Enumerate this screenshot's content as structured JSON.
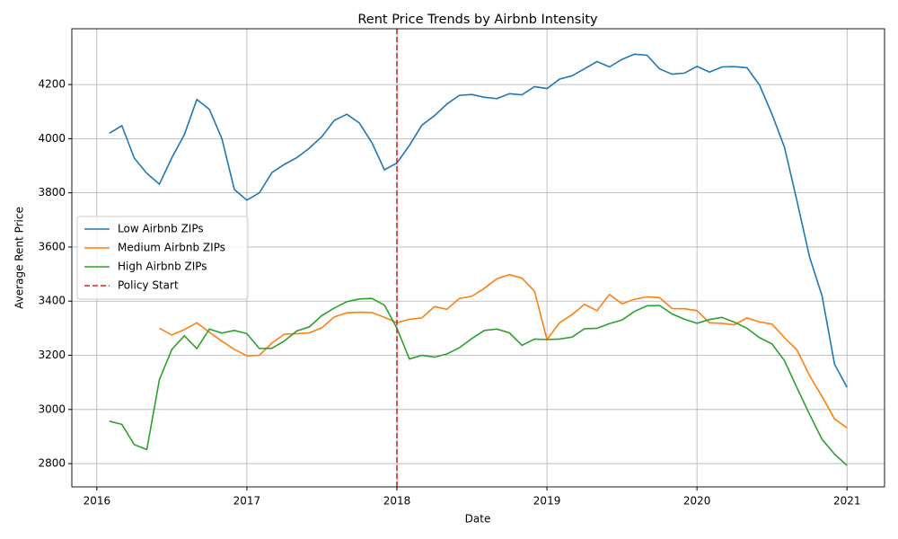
{
  "chart_data": {
    "type": "line",
    "title": "Rent Price Trends by Airbnb Intensity",
    "xlabel": "Date",
    "ylabel": "Average Rent Price",
    "x": [
      "2016-01",
      "2016-02",
      "2016-03",
      "2016-04",
      "2016-05",
      "2016-06",
      "2016-07",
      "2016-08",
      "2016-09",
      "2016-10",
      "2016-11",
      "2016-12",
      "2017-01",
      "2017-02",
      "2017-03",
      "2017-04",
      "2017-05",
      "2017-06",
      "2017-07",
      "2017-08",
      "2017-09",
      "2017-10",
      "2017-11",
      "2017-12",
      "2018-01",
      "2018-02",
      "2018-03",
      "2018-04",
      "2018-05",
      "2018-06",
      "2018-07",
      "2018-08",
      "2018-09",
      "2018-10",
      "2018-11",
      "2018-12",
      "2019-01",
      "2019-02",
      "2019-03",
      "2019-04",
      "2019-05",
      "2019-06",
      "2019-07",
      "2019-08",
      "2019-09",
      "2019-10",
      "2019-11",
      "2019-12",
      "2020-01",
      "2020-02",
      "2020-03",
      "2020-04",
      "2020-05",
      "2020-06",
      "2020-07",
      "2020-08",
      "2020-09",
      "2020-10",
      "2020-11",
      "2020-12"
    ],
    "series": [
      {
        "name": "Low Airbnb ZIPs",
        "color": "#1f77b4",
        "values": [
          4020,
          4048,
          3928,
          3872,
          3832,
          3930,
          4015,
          4145,
          4108,
          4000,
          3812,
          3773,
          3800,
          3875,
          3905,
          3930,
          3965,
          4008,
          4068,
          4090,
          4058,
          3985,
          3885,
          3910,
          3975,
          4050,
          4085,
          4128,
          4160,
          4163,
          4153,
          4148,
          4166,
          4162,
          4192,
          4185,
          4220,
          4232,
          4258,
          4285,
          4265,
          4293,
          4312,
          4308,
          4258,
          4238,
          4242,
          4267,
          4246,
          4265,
          4266,
          4262,
          4198,
          4090,
          3968,
          3770,
          3563,
          3420,
          3168,
          3082
        ]
      },
      {
        "name": "Medium Airbnb ZIPs",
        "color": "#ff7f0e",
        "values": [
          null,
          null,
          null,
          null,
          3300,
          3275,
          3295,
          3320,
          3285,
          3252,
          3222,
          3198,
          3200,
          3245,
          3278,
          3280,
          3283,
          3302,
          3342,
          3357,
          3359,
          3358,
          3340,
          3320,
          3333,
          3338,
          3380,
          3370,
          3410,
          3418,
          3448,
          3483,
          3498,
          3485,
          3437,
          3258,
          3320,
          3350,
          3388,
          3365,
          3425,
          3390,
          3407,
          3416,
          3413,
          3373,
          3372,
          3365,
          3320,
          3318,
          3313,
          3338,
          3323,
          3315,
          3265,
          3220,
          3125,
          3048,
          2965,
          2932
        ]
      },
      {
        "name": "High Airbnb ZIPs",
        "color": "#2ca02c",
        "values": [
          2957,
          2945,
          2870,
          2852,
          3110,
          3222,
          3272,
          3225,
          3297,
          3282,
          3292,
          3280,
          3225,
          3226,
          3253,
          3290,
          3305,
          3347,
          3375,
          3398,
          3408,
          3410,
          3385,
          3300,
          3186,
          3200,
          3193,
          3205,
          3228,
          3262,
          3292,
          3297,
          3283,
          3237,
          3260,
          3258,
          3260,
          3267,
          3298,
          3300,
          3317,
          3330,
          3362,
          3383,
          3384,
          3353,
          3333,
          3318,
          3332,
          3340,
          3322,
          3300,
          3265,
          3242,
          3180,
          3080,
          2982,
          2890,
          2835,
          2793
        ]
      }
    ],
    "vlines": [
      {
        "name": "Policy Start",
        "x": "2018",
        "color": "#d62728"
      }
    ],
    "xlim": [
      "2015-10",
      "2021-03"
    ],
    "xticks": [
      "2016",
      "2017",
      "2018",
      "2019",
      "2020",
      "2021"
    ],
    "ylim": [
      2714,
      4406
    ],
    "yticks": [
      2800,
      3000,
      3200,
      3400,
      3600,
      3800,
      4000,
      4200
    ],
    "grid": true,
    "legend": "center left"
  }
}
